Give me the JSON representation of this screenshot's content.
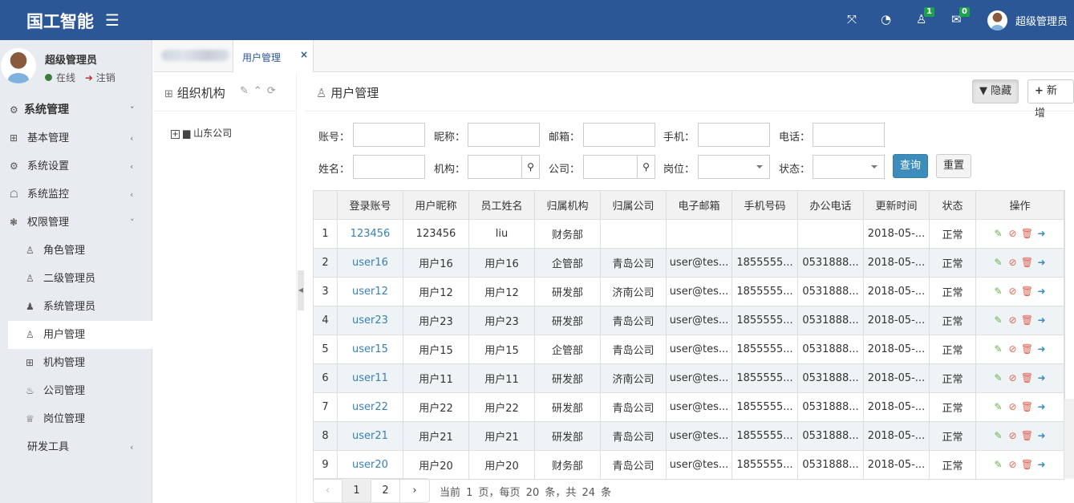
{
  "header": {
    "logo": "国工智能",
    "user": "超级管理员",
    "notifications_count": "1",
    "messages_count": "0",
    "brand_color": "#2b5797"
  },
  "sidebar": {
    "user_name": "超级管理员",
    "status": "在线",
    "logout": "注销",
    "items": [
      {
        "label": "系统管理",
        "icon": "gear-icon",
        "level": "top",
        "arrow": "˅"
      },
      {
        "label": "基本管理",
        "icon": "grid-icon",
        "arrow": "‹"
      },
      {
        "label": "系统设置",
        "icon": "gear-icon",
        "arrow": "‹"
      },
      {
        "label": "系统监控",
        "icon": "ghost-icon",
        "arrow": "‹"
      },
      {
        "label": "权限管理",
        "icon": "cubes-icon",
        "arrow": "˅"
      },
      {
        "label": "角色管理",
        "icon": "user-icon",
        "sub": true
      },
      {
        "label": "二级管理员",
        "icon": "user-icon",
        "sub": true
      },
      {
        "label": "系统管理员",
        "icon": "users-icon",
        "sub": true
      },
      {
        "label": "用户管理",
        "icon": "user-icon",
        "sub": true,
        "active": true
      },
      {
        "label": "机构管理",
        "icon": "grid-icon",
        "sub": true
      },
      {
        "label": "公司管理",
        "icon": "fire-icon",
        "sub": true
      },
      {
        "label": "岗位管理",
        "icon": "trophy-icon",
        "sub": true
      },
      {
        "label": "研发工具",
        "icon": "code-icon",
        "arrow": "‹"
      }
    ]
  },
  "tabs": {
    "active": "用户管理",
    "close": "×"
  },
  "tree": {
    "title": "组织机构",
    "root": "山东公司"
  },
  "main": {
    "title": "用户管理",
    "hide_button": "隐藏",
    "add_button": "新增",
    "filters": {
      "account": "账号：",
      "nickname": "昵称：",
      "email": "邮箱：",
      "mobile": "手机：",
      "phone": "电话：",
      "name": "姓名：",
      "org": "机构：",
      "company": "公司：",
      "post": "岗位：",
      "status": "状态："
    },
    "query_button": "查询",
    "reset_button": "重置"
  },
  "table": {
    "columns": [
      "",
      "登录账号",
      "用户昵称",
      "员工姓名",
      "归属机构",
      "归属公司",
      "电子邮箱",
      "手机号码",
      "办公电话",
      "更新时间",
      "状态",
      "操作"
    ],
    "rows": [
      [
        "1",
        "123456",
        "123456",
        "liu",
        "财务部",
        "",
        "",
        "",
        "",
        "2018-05-...",
        "正常"
      ],
      [
        "2",
        "user16",
        "用户16",
        "用户16",
        "企管部",
        "青岛公司",
        "user@tes...",
        "1855555...",
        "0531888...",
        "2018-05-...",
        "正常"
      ],
      [
        "3",
        "user12",
        "用户12",
        "用户12",
        "研发部",
        "济南公司",
        "user@tes...",
        "1855555...",
        "0531888...",
        "2018-05-...",
        "正常"
      ],
      [
        "4",
        "user23",
        "用户23",
        "用户23",
        "研发部",
        "青岛公司",
        "user@tes...",
        "1855555...",
        "0531888...",
        "2018-05-...",
        "正常"
      ],
      [
        "5",
        "user15",
        "用户15",
        "用户15",
        "企管部",
        "青岛公司",
        "user@tes...",
        "1855555...",
        "0531888...",
        "2018-05-...",
        "正常"
      ],
      [
        "6",
        "user11",
        "用户11",
        "用户11",
        "研发部",
        "济南公司",
        "user@tes...",
        "1855555...",
        "0531888...",
        "2018-05-...",
        "正常"
      ],
      [
        "7",
        "user22",
        "用户22",
        "用户22",
        "研发部",
        "青岛公司",
        "user@tes...",
        "1855555...",
        "0531888...",
        "2018-05-...",
        "正常"
      ],
      [
        "8",
        "user21",
        "用户21",
        "用户21",
        "研发部",
        "青岛公司",
        "user@tes...",
        "1855555...",
        "0531888...",
        "2018-05-...",
        "正常"
      ],
      [
        "9",
        "user20",
        "用户20",
        "用户20",
        "财务部",
        "青岛公司",
        "user@tes...",
        "1855555...",
        "0531888...",
        "2018-05-...",
        "正常"
      ]
    ]
  },
  "pager": {
    "prev": "‹",
    "pages": [
      "1",
      "2"
    ],
    "next": "›",
    "info": "当前 1 页，每页 20 条，共 24 条"
  }
}
